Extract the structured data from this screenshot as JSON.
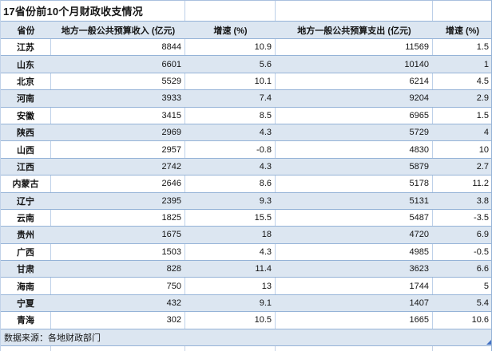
{
  "title": "17省份前10个月财政收支情况",
  "source_note": "数据来源：各地财政部门",
  "colors": {
    "stripe_blue": "#dce6f1",
    "row_border_blue": "#95b3d7",
    "column_border_blue": "#bed1e9",
    "resize_handle_blue": "#4472c4",
    "text": "#141414"
  },
  "table": {
    "columns": [
      {
        "key": "province",
        "label": "省份"
      },
      {
        "key": "revenue",
        "label": "地方一般公共预算收入 (亿元)"
      },
      {
        "key": "revenue_growth",
        "label": "增速 (%)"
      },
      {
        "key": "expenditure",
        "label": "地方一般公共预算支出 (亿元)"
      },
      {
        "key": "expenditure_growth",
        "label": "增速 (%)"
      }
    ],
    "rows": [
      {
        "province": "江苏",
        "revenue": "8844",
        "revenue_growth": "10.9",
        "expenditure": "11569",
        "expenditure_growth": "1.5"
      },
      {
        "province": "山东",
        "revenue": "6601",
        "revenue_growth": "5.6",
        "expenditure": "10140",
        "expenditure_growth": "1"
      },
      {
        "province": "北京",
        "revenue": "5529",
        "revenue_growth": "10.1",
        "expenditure": "6214",
        "expenditure_growth": "4.5"
      },
      {
        "province": "河南",
        "revenue": "3933",
        "revenue_growth": "7.4",
        "expenditure": "9204",
        "expenditure_growth": "2.9"
      },
      {
        "province": "安徽",
        "revenue": "3415",
        "revenue_growth": "8.5",
        "expenditure": "6965",
        "expenditure_growth": "1.5"
      },
      {
        "province": "陕西",
        "revenue": "2969",
        "revenue_growth": "4.3",
        "expenditure": "5729",
        "expenditure_growth": "4"
      },
      {
        "province": "山西",
        "revenue": "2957",
        "revenue_growth": "-0.8",
        "expenditure": "4830",
        "expenditure_growth": "10"
      },
      {
        "province": "江西",
        "revenue": "2742",
        "revenue_growth": "4.3",
        "expenditure": "5879",
        "expenditure_growth": "2.7"
      },
      {
        "province": "内蒙古",
        "revenue": "2646",
        "revenue_growth": "8.6",
        "expenditure": "5178",
        "expenditure_growth": "11.2"
      },
      {
        "province": "辽宁",
        "revenue": "2395",
        "revenue_growth": "9.3",
        "expenditure": "5131",
        "expenditure_growth": "3.8"
      },
      {
        "province": "云南",
        "revenue": "1825",
        "revenue_growth": "15.5",
        "expenditure": "5487",
        "expenditure_growth": "-3.5"
      },
      {
        "province": "贵州",
        "revenue": "1675",
        "revenue_growth": "18",
        "expenditure": "4720",
        "expenditure_growth": "6.9"
      },
      {
        "province": "广西",
        "revenue": "1503",
        "revenue_growth": "4.3",
        "expenditure": "4985",
        "expenditure_growth": "-0.5"
      },
      {
        "province": "甘肃",
        "revenue": "828",
        "revenue_growth": "11.4",
        "expenditure": "3623",
        "expenditure_growth": "6.6"
      },
      {
        "province": "海南",
        "revenue": "750",
        "revenue_growth": "13",
        "expenditure": "1744",
        "expenditure_growth": "5"
      },
      {
        "province": "宁夏",
        "revenue": "432",
        "revenue_growth": "9.1",
        "expenditure": "1407",
        "expenditure_growth": "5.4"
      },
      {
        "province": "青海",
        "revenue": "302",
        "revenue_growth": "10.5",
        "expenditure": "1665",
        "expenditure_growth": "10.6"
      }
    ]
  }
}
